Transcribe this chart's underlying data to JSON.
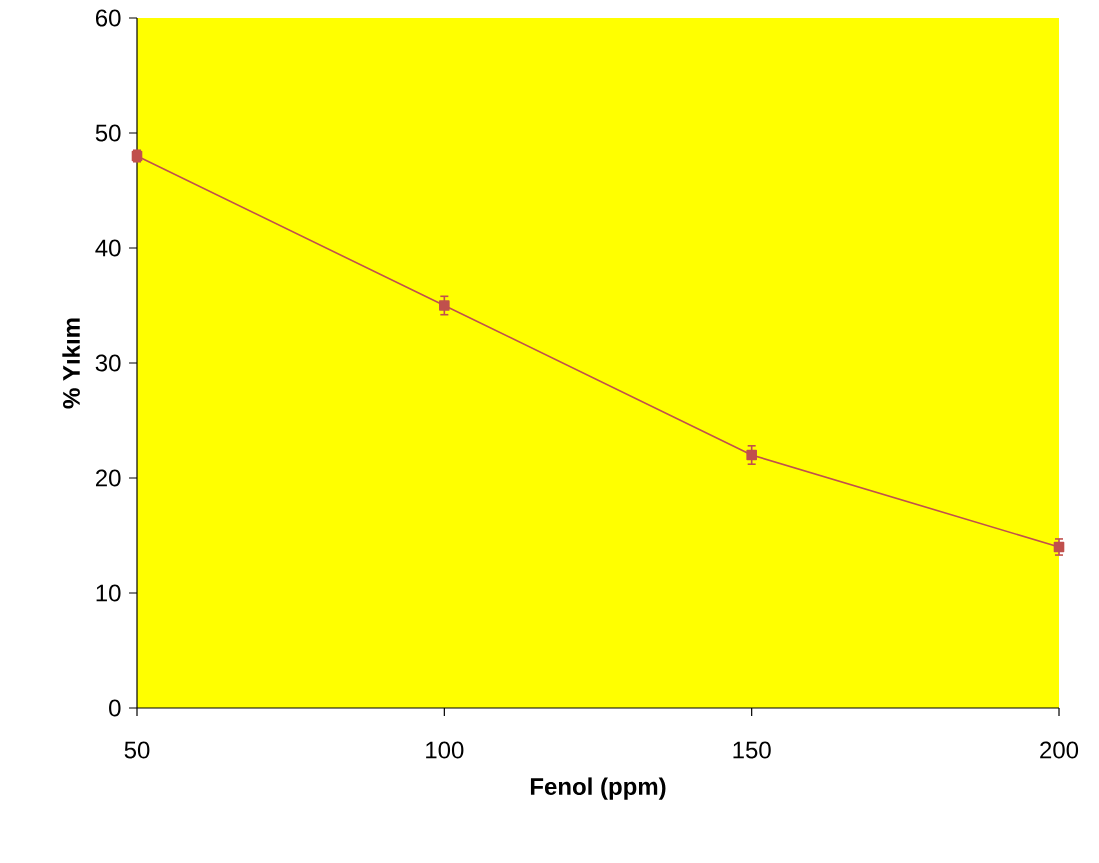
{
  "chart_data": {
    "type": "line",
    "xlabel": "Fenol (ppm)",
    "ylabel": "% Yıkım",
    "x": [
      50,
      100,
      150,
      200
    ],
    "series": [
      {
        "color": "#c0504d",
        "values": [
          48,
          35,
          22,
          14
        ],
        "errors": [
          0.5,
          0.8,
          0.8,
          0.7
        ]
      }
    ],
    "xlim": [
      50,
      200
    ],
    "xticks": [
      50,
      100,
      150,
      200
    ],
    "ylim": [
      0,
      60
    ],
    "yticks": [
      0,
      10,
      20,
      30,
      40,
      50,
      60
    ],
    "marker": "square",
    "line_style": "solid"
  }
}
